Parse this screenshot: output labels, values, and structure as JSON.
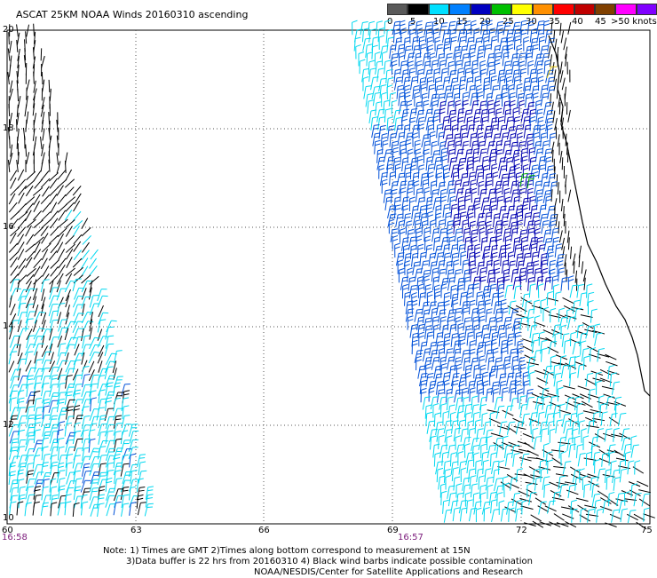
{
  "title": "ASCAT 25KM NOAA Winds 20160310 ascending",
  "legend": {
    "labels": [
      "0",
      "5",
      "10",
      "15",
      "20",
      "25",
      "30",
      "35",
      "40",
      "45",
      ">50 knots"
    ],
    "colors": [
      "#5a5a5a",
      "#000000",
      "#00e0ff",
      "#0080ff",
      "#0000c0",
      "#00c000",
      "#ffff00",
      "#ff9000",
      "#ff0000",
      "#c00000",
      "#804000",
      "#ff00ff",
      "#8000ff"
    ]
  },
  "axes": {
    "x_ticks": [
      "60",
      "63",
      "66",
      "69",
      "72",
      "75"
    ],
    "y_ticks": [
      "20",
      "18",
      "16",
      "14",
      "12",
      "10"
    ]
  },
  "pass_times": [
    "16:58",
    "16:57"
  ],
  "notes": [
    "Note: 1) Times are GMT 2)Times along bottom correspond to measurement at 15N",
    "3)Data buffer is 22 hrs from 20160310 4) Black wind barbs indicate possible contamination",
    "NOAA/NESDIS/Center for Satellite Applications and Research"
  ],
  "barb_colors": {
    "black": "#000000",
    "cyan": "#00d8f0",
    "blue": "#0050d8",
    "dark_blue": "#0000b0",
    "green": "#00b000",
    "yellow": "#e0c000"
  },
  "coastline_color": "#000000"
}
